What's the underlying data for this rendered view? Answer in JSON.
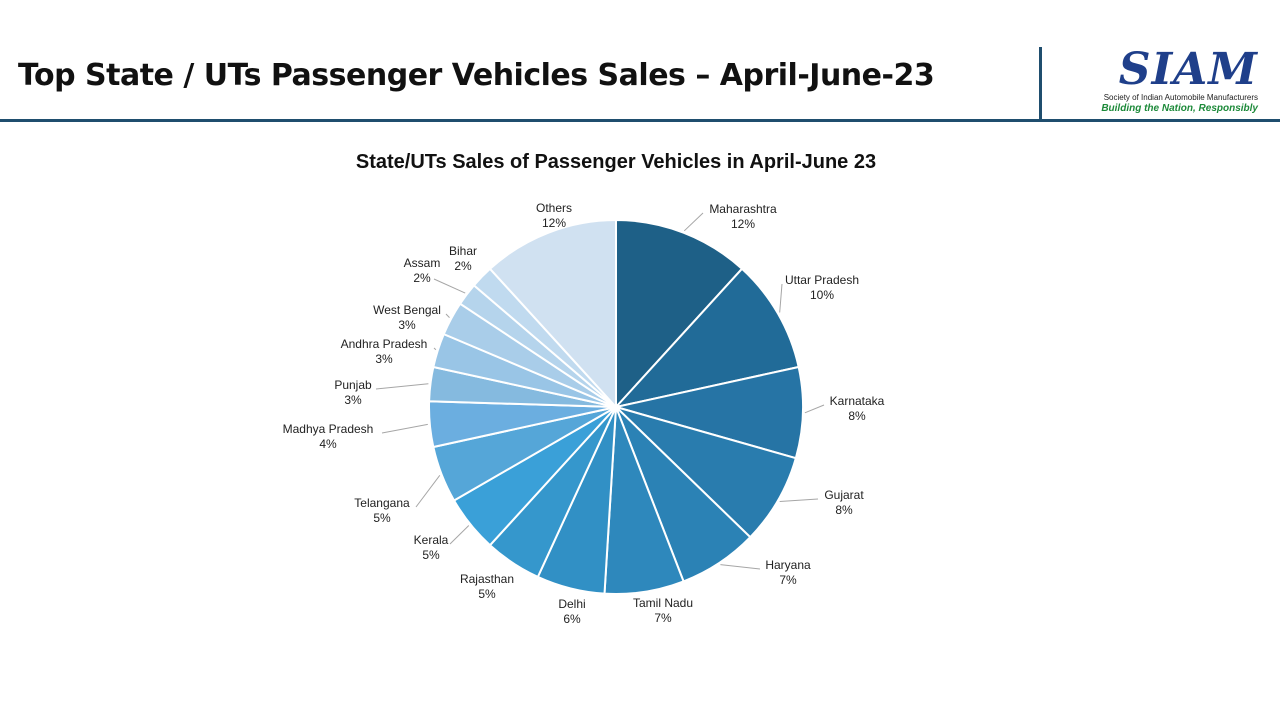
{
  "header": {
    "title": "Top State / UTs Passenger Vehicles Sales – April-June-23",
    "logo_text": "SIAM",
    "logo_subtitle": "Society of Indian Automobile Manufacturers",
    "logo_tagline": "Building the Nation, Responsibly"
  },
  "colors": {
    "accent": "#1f4e6e",
    "logo_blue": "#1f3f8a",
    "tagline_green": "#1d8a3a"
  },
  "chart_data": {
    "type": "pie",
    "title": "State/UTs Sales of Passenger Vehicles in April-June 23",
    "start": "top",
    "direction": "clockwise",
    "slices": [
      {
        "label": "Maharashtra",
        "value": 12,
        "text": "12%",
        "color": "#1e6087"
      },
      {
        "label": "Uttar Pradesh",
        "value": 10,
        "text": "10%",
        "color": "#216b98"
      },
      {
        "label": "Karnataka",
        "value": 8,
        "text": "8%",
        "color": "#2674a5"
      },
      {
        "label": "Gujarat",
        "value": 8,
        "text": "8%",
        "color": "#297cae"
      },
      {
        "label": "Haryana",
        "value": 7,
        "text": "7%",
        "color": "#2b82b5"
      },
      {
        "label": "Tamil Nadu",
        "value": 7,
        "text": "7%",
        "color": "#2e88bc"
      },
      {
        "label": "Delhi",
        "value": 6,
        "text": "6%",
        "color": "#3190c5"
      },
      {
        "label": "Rajasthan",
        "value": 5,
        "text": "5%",
        "color": "#3597cc"
      },
      {
        "label": "Kerala",
        "value": 5,
        "text": "5%",
        "color": "#3aa0d8"
      },
      {
        "label": "Telangana",
        "value": 5,
        "text": "5%",
        "color": "#55a6d8"
      },
      {
        "label": "Madhya Pradesh",
        "value": 4,
        "text": "4%",
        "color": "#6baee0"
      },
      {
        "label": "Punjab",
        "value": 3,
        "text": "3%",
        "color": "#85badf"
      },
      {
        "label": "Andhra Pradesh",
        "value": 3,
        "text": "3%",
        "color": "#99c5e6"
      },
      {
        "label": "West Bengal",
        "value": 3,
        "text": "3%",
        "color": "#a9cde9"
      },
      {
        "label": "Assam",
        "value": 2,
        "text": "2%",
        "color": "#b5d4ec"
      },
      {
        "label": "Bihar",
        "value": 2,
        "text": "2%",
        "color": "#c0daef"
      },
      {
        "label": "Others",
        "value": 12,
        "text": "12%",
        "color": "#d0e1f1"
      }
    ]
  }
}
